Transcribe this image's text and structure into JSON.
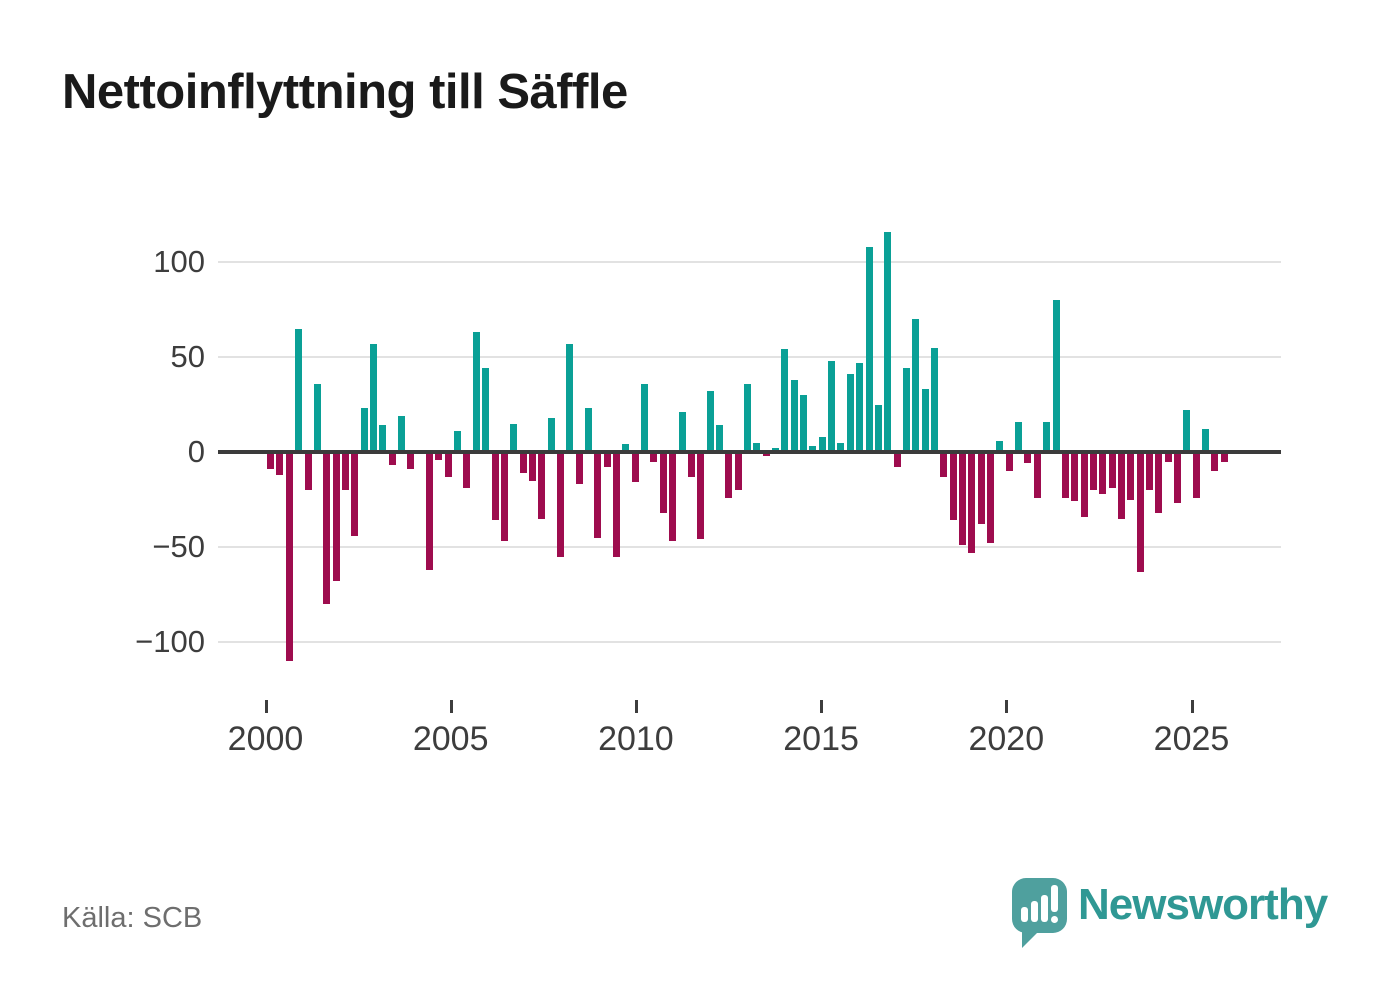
{
  "title": "Nettoinflyttning till Säffle",
  "source": {
    "label": "Källa: SCB"
  },
  "branding": {
    "name": "Newsworthy",
    "icon": "speech-bubble-bar-chart-icon"
  },
  "colors": {
    "positive": "#0aa096",
    "negative": "#9e0c4e",
    "zero_line": "#3b3b3b",
    "gridline": "#e2e2e2",
    "axis_text": "#3d3d3d",
    "title_text": "#1a1a1a",
    "source_text": "#6e6e6e",
    "logo_bubble": "#4fa09e",
    "logo_text": "#2f9894",
    "background": "#ffffff"
  },
  "chart_data": {
    "type": "bar",
    "title": "Nettoinflyttning till Säffle",
    "frequency": "quarterly",
    "x_start_year": 2000,
    "x_start_quarter": 1,
    "values": [
      -9,
      -12,
      -110,
      65,
      -20,
      36,
      -80,
      -68,
      -20,
      -44,
      23,
      57,
      14,
      -7,
      19,
      -9,
      1,
      -62,
      -4,
      -13,
      11,
      -19,
      63,
      44,
      -36,
      -47,
      15,
      -11,
      -15,
      -35,
      18,
      -55,
      57,
      -17,
      23,
      -45,
      -8,
      -55,
      4,
      -16,
      36,
      -5,
      -32,
      -47,
      21,
      -13,
      -46,
      32,
      14,
      -24,
      -20,
      36,
      5,
      -2,
      2,
      54,
      38,
      30,
      3,
      8,
      48,
      5,
      41,
      47,
      108,
      25,
      116,
      -8,
      44,
      70,
      33,
      55,
      -13,
      -36,
      -49,
      -53,
      -38,
      -48,
      6,
      -10,
      16,
      -6,
      -24,
      16,
      80,
      -24,
      -26,
      -34,
      -20,
      -22,
      -19,
      -35,
      -25,
      -63,
      -20,
      -32,
      -5,
      -27,
      22,
      -24,
      12,
      -10,
      -5
    ],
    "y_ticks": [
      100,
      50,
      0,
      -50,
      -100
    ],
    "y_tick_labels": [
      "100",
      "50",
      "0",
      "−50",
      "−100"
    ],
    "x_tick_years": [
      2000,
      2005,
      2010,
      2015,
      2020,
      2025
    ],
    "x_tick_labels": [
      "2000",
      "2005",
      "2010",
      "2015",
      "2020",
      "2025"
    ],
    "ylim": [
      -117,
      117
    ],
    "grid": "horizontal",
    "legend": "none",
    "xlabel": "",
    "ylabel": ""
  }
}
